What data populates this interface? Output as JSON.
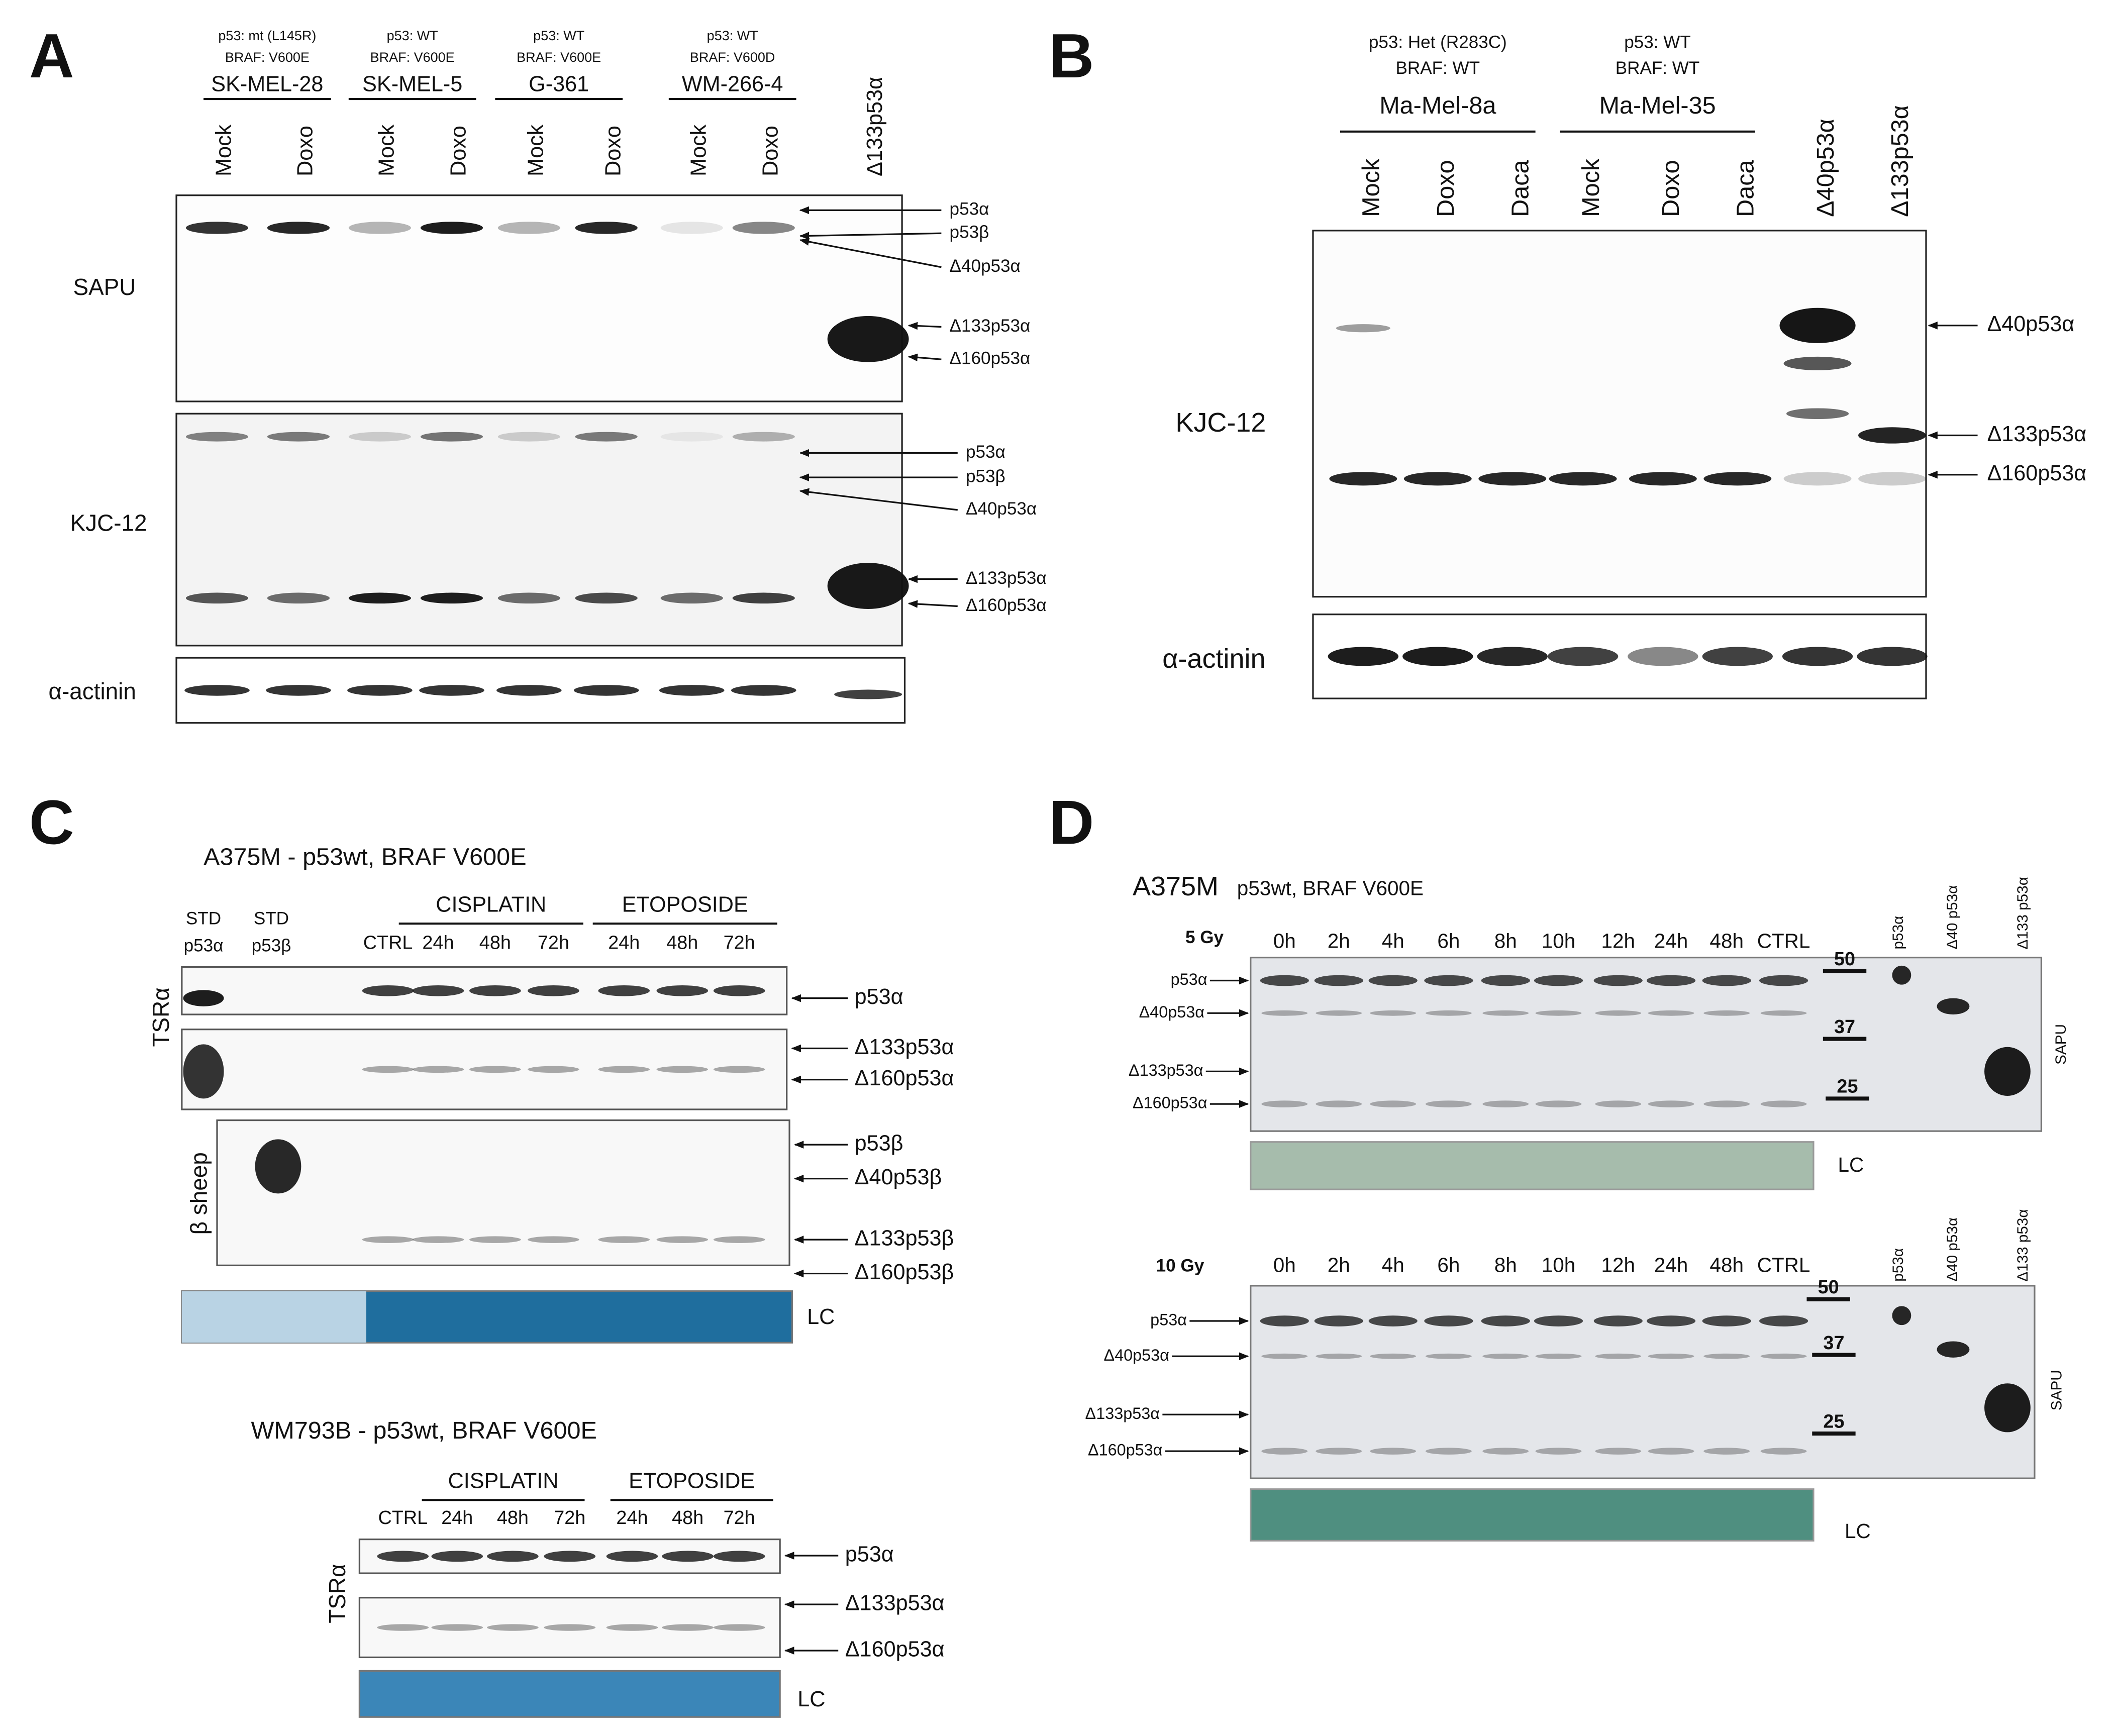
{
  "panels": [
    {
      "label": "A",
      "cell_lines": [
        {
          "name": "SK-MEL-28",
          "p53": "p53: mt (L145R)",
          "braf": "BRAF: V600E"
        },
        {
          "name": "SK-MEL-5",
          "p53": "p53: WT",
          "braf": "BRAF: V600E"
        },
        {
          "name": "G-361",
          "p53": "p53: WT",
          "braf": "BRAF: V600E"
        },
        {
          "name": "WM-266-4",
          "p53": "p53: WT",
          "braf": "BRAF: V600D"
        }
      ],
      "lanes": [
        "Mock",
        "Doxo",
        "Mock",
        "Doxo",
        "Mock",
        "Doxo",
        "Mock",
        "Doxo",
        "Δ133p53α"
      ],
      "blots": [
        {
          "antibody": "SAPU",
          "bands": [
            "p53α",
            "p53β",
            "Δ40p53α",
            "Δ133p53α",
            "Δ160p53α"
          ]
        },
        {
          "antibody": "KJC-12",
          "bands": [
            "p53α",
            "p53β",
            "Δ40p53α",
            "Δ133p53α",
            "Δ160p53α"
          ]
        },
        {
          "antibody": "α-actinin"
        }
      ]
    },
    {
      "label": "B",
      "cell_lines": [
        {
          "name": "Ma-Mel-8a",
          "p53": "p53: Het (R283C)",
          "braf": "BRAF: WT"
        },
        {
          "name": "Ma-Mel-35",
          "p53": "p53: WT",
          "braf": "BRAF: WT"
        }
      ],
      "lanes": [
        "Mock",
        "Doxo",
        "Daca",
        "Mock",
        "Doxo",
        "Daca",
        "Δ40p53α",
        "Δ133p53α"
      ],
      "blots": [
        {
          "antibody": "KJC-12",
          "bands": [
            "Δ40p53α",
            "Δ133p53α",
            "Δ160p53α"
          ]
        },
        {
          "antibody": "α-actinin"
        }
      ]
    },
    {
      "label": "C",
      "experiments": [
        {
          "title": "A375M - p53wt, BRAF V600E",
          "standards": [
            [
              "STD",
              "p53α"
            ],
            [
              "STD",
              "p53β"
            ]
          ],
          "groups": [
            "CISPLATIN",
            "ETOPOSIDE"
          ],
          "lanes": [
            "CTRL",
            "24h",
            "48h",
            "72h",
            "24h",
            "48h",
            "72h"
          ],
          "blots": [
            {
              "antibody": "TSRα",
              "bands": [
                "p53α",
                "Δ133p53α",
                "Δ160p53α"
              ]
            },
            {
              "antibody": "β sheep",
              "bands": [
                "p53β",
                "Δ40p53β",
                "Δ133p53β",
                "Δ160p53β"
              ]
            }
          ],
          "loading": "LC"
        },
        {
          "title": "WM793B - p53wt, BRAF V600E",
          "groups": [
            "CISPLATIN",
            "ETOPOSIDE"
          ],
          "lanes": [
            "CTRL",
            "24h",
            "48h",
            "72h",
            "24h",
            "48h",
            "72h"
          ],
          "blots": [
            {
              "antibody": "TSRα",
              "bands": [
                "p53α",
                "Δ133p53α",
                "Δ160p53α"
              ]
            }
          ],
          "loading": "LC"
        }
      ]
    },
    {
      "label": "D",
      "title": "A375M",
      "subtitle": "p53wt, BRAF V600E",
      "experiments": [
        {
          "dose": "5 Gy",
          "lanes": [
            "0h",
            "2h",
            "4h",
            "6h",
            "8h",
            "10h",
            "12h",
            "24h",
            "48h",
            "CTRL"
          ],
          "standards": [
            "p53α",
            "Δ40 p53α",
            "Δ133 p53α"
          ],
          "markers": [
            50,
            37,
            25
          ],
          "bands": [
            "p53α",
            "Δ40p53α",
            "Δ133p53α",
            "Δ160p53α"
          ],
          "antibody": "SAPU",
          "loading": "LC"
        },
        {
          "dose": "10 Gy",
          "lanes": [
            "0h",
            "2h",
            "4h",
            "6h",
            "8h",
            "10h",
            "12h",
            "24h",
            "48h",
            "CTRL"
          ],
          "standards": [
            "p53α",
            "Δ40 p53α",
            "Δ133 p53α"
          ],
          "markers": [
            50,
            37,
            25
          ],
          "bands": [
            "p53α",
            "Δ40p53α",
            "Δ133p53α",
            "Δ160p53α"
          ],
          "antibody": "SAPU",
          "loading": "LC"
        }
      ]
    }
  ]
}
